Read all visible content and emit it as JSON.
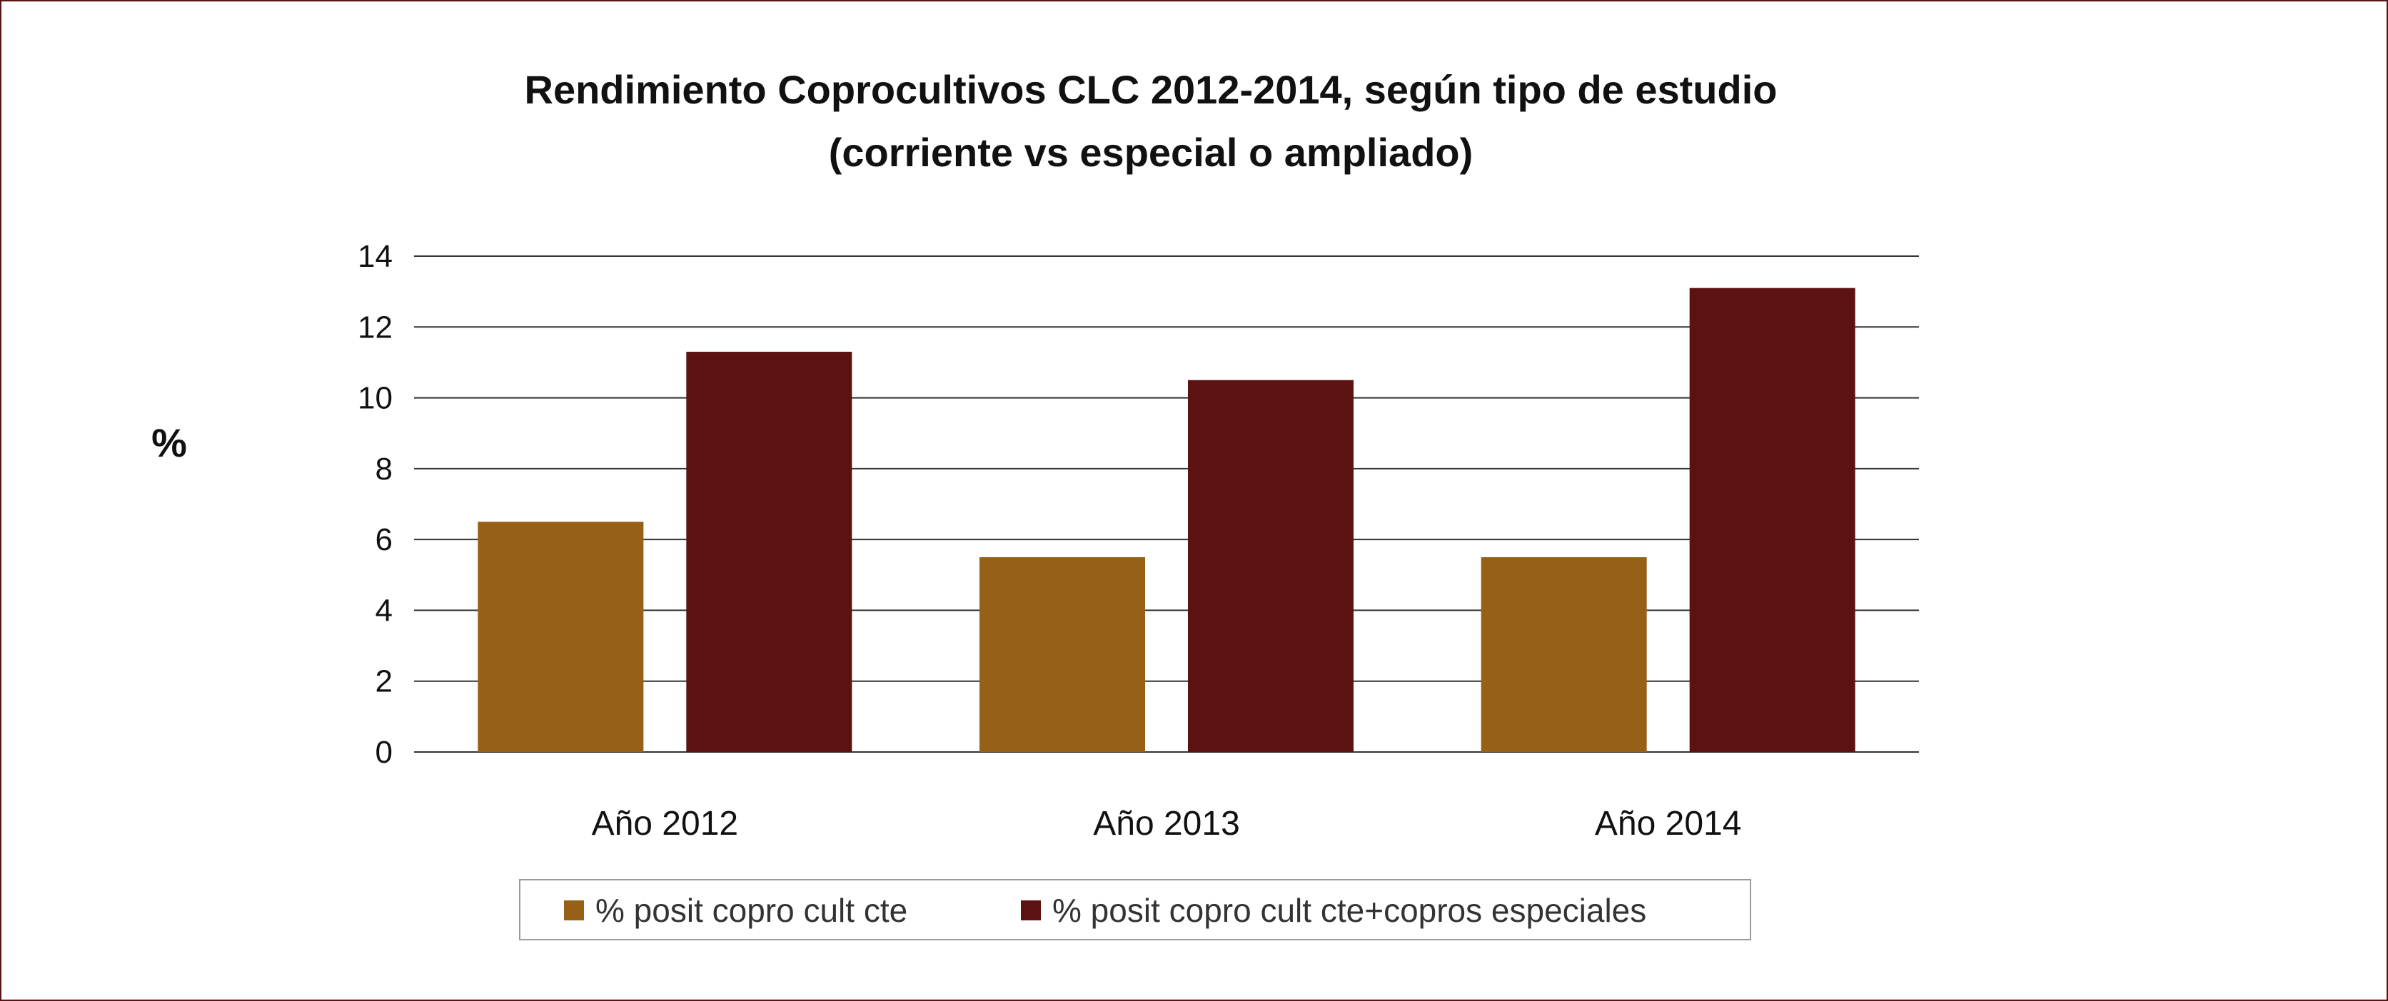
{
  "chart_data": {
    "type": "bar",
    "title_line1": "Rendimiento Coprocultivos CLC 2012-2014, según tipo de estudio",
    "title_line2": "(corriente vs especial o ampliado)",
    "ylabel": "%",
    "xlabel": "",
    "categories": [
      "Año 2012",
      "Año 2013",
      "Año 2014"
    ],
    "ylim": [
      0,
      14
    ],
    "yticks": [
      0,
      2,
      4,
      6,
      8,
      10,
      12,
      14
    ],
    "ytick_labels": [
      "0",
      "2",
      "4",
      "6",
      "8",
      "10",
      "12",
      "14"
    ],
    "grid": true,
    "legend_position": "bottom",
    "series": [
      {
        "name": "% posit copro cult cte",
        "color": "#966116",
        "values": [
          6.5,
          5.5,
          5.5
        ]
      },
      {
        "name": "% posit copro cult cte+copros especiales",
        "color": "#5c1211",
        "values": [
          11.3,
          10.5,
          13.1
        ]
      }
    ]
  },
  "colors": {
    "frame_border": "#5a1414",
    "gridline": "#333333",
    "legend_border": "#9a9a9a"
  }
}
